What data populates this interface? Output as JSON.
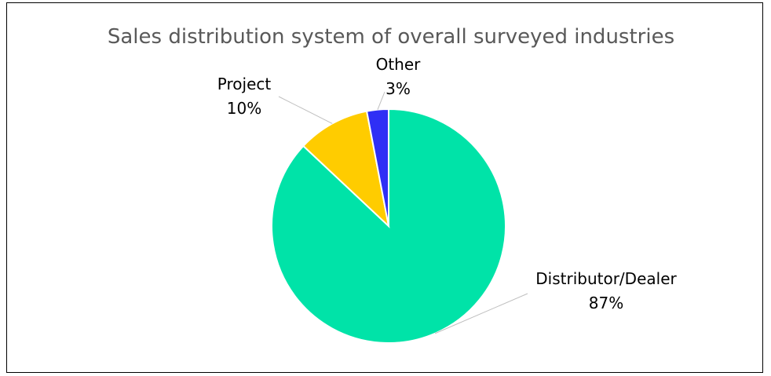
{
  "chart_data": {
    "type": "pie",
    "title": "Sales distribution system of overall surveyed industries",
    "slices": [
      {
        "label": "Distributor/Dealer",
        "value": 87,
        "value_label": "87%",
        "color": "#00E3A8"
      },
      {
        "label": "Project",
        "value": 10,
        "value_label": "10%",
        "color": "#FFCC00"
      },
      {
        "label": "Other",
        "value": 3,
        "value_label": "3%",
        "color": "#2F2FF5"
      }
    ],
    "start_angle": "top (12 o'clock)",
    "direction": "clockwise",
    "legend": "none",
    "slice_border_color": "#ffffff",
    "leader_line_color": "#BFBFBF"
  }
}
